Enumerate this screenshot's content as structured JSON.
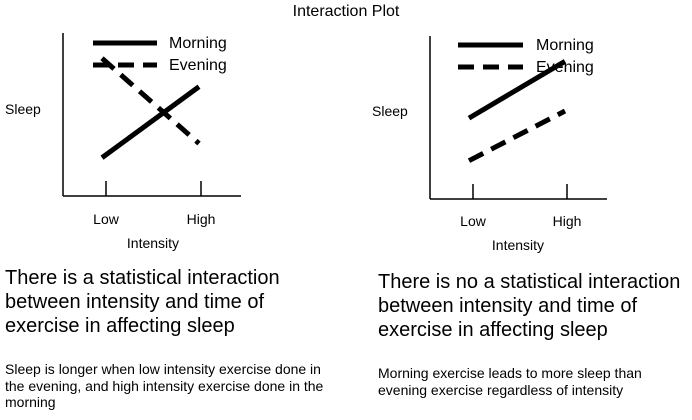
{
  "title": "Interaction Plot",
  "chart_data": [
    {
      "type": "line",
      "categories": [
        "Low",
        "High"
      ],
      "series": [
        {
          "name": "Morning",
          "style": "solid",
          "values": [
            1.5,
            6.5
          ]
        },
        {
          "name": "Evening",
          "style": "dashed",
          "values": [
            8.5,
            2.5
          ]
        }
      ],
      "xlabel": "Intensity",
      "ylabel": "Sleep",
      "ylim": [
        0,
        10
      ],
      "legend": "top-left",
      "heading": "There is a statistical interaction between intensity and time of exercise in affecting sleep",
      "description": "Sleep is longer when low intensity exercise done in the evening, and high intensity exercise done in the morning"
    },
    {
      "type": "line",
      "categories": [
        "Low",
        "High"
      ],
      "series": [
        {
          "name": "Morning",
          "style": "solid",
          "values": [
            4.5,
            8.5
          ]
        },
        {
          "name": "Evening",
          "style": "dashed",
          "values": [
            1.5,
            5
          ]
        }
      ],
      "xlabel": "Intensity",
      "ylabel": "Sleep",
      "ylim": [
        0,
        10
      ],
      "legend": "top-left",
      "heading": "There is no a statistical interaction between intensity and time of exercise in affecting sleep",
      "description": "Morning exercise leads to more sleep than evening exercise regardless of intensity"
    }
  ]
}
